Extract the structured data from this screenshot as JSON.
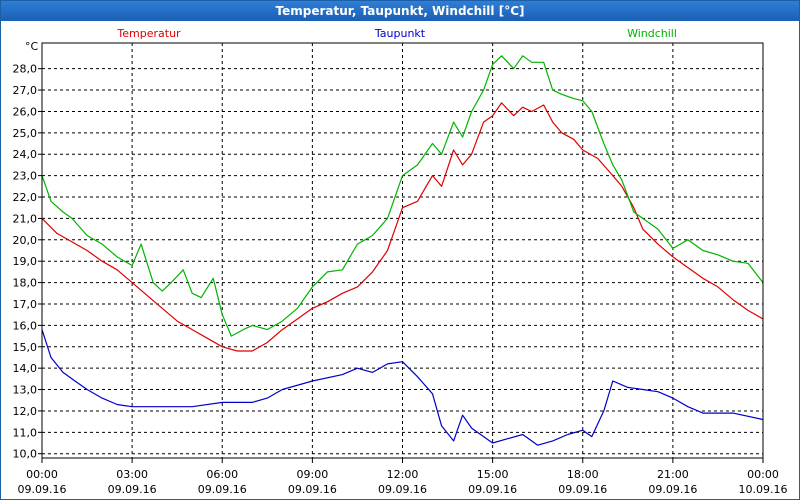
{
  "chart_data": {
    "type": "line",
    "title": "Temperatur, Taupunkt, Windchill [°C]",
    "ylabel": "°C",
    "ylim": [
      9.8,
      29.2
    ],
    "y_ticks": [
      "10,0",
      "11,0",
      "12,0",
      "13,0",
      "14,0",
      "15,0",
      "16,0",
      "17,0",
      "18,0",
      "19,0",
      "20,0",
      "21,0",
      "22,0",
      "23,0",
      "24,0",
      "25,0",
      "26,0",
      "27,0",
      "28,0"
    ],
    "x_ticks": [
      {
        "time": "00:00",
        "date": "09.09.16"
      },
      {
        "time": "03:00",
        "date": "09.09.16"
      },
      {
        "time": "06:00",
        "date": "09.09.16"
      },
      {
        "time": "09:00",
        "date": "09.09.16"
      },
      {
        "time": "12:00",
        "date": "09.09.16"
      },
      {
        "time": "15:00",
        "date": "09.09.16"
      },
      {
        "time": "18:00",
        "date": "09.09.16"
      },
      {
        "time": "21:00",
        "date": "09.09.16"
      },
      {
        "time": "00:00",
        "date": "10.09.16"
      }
    ],
    "x_unit": "hours since 09.09.16 00:00",
    "xlim": [
      0,
      24
    ],
    "series": [
      {
        "name": "Temperatur",
        "color": "#e00000",
        "points": [
          [
            0,
            21.0
          ],
          [
            0.5,
            20.3
          ],
          [
            1,
            19.9
          ],
          [
            1.5,
            19.5
          ],
          [
            2,
            19.0
          ],
          [
            2.5,
            18.6
          ],
          [
            3,
            18.0
          ],
          [
            3.5,
            17.4
          ],
          [
            4,
            16.8
          ],
          [
            4.5,
            16.2
          ],
          [
            5,
            15.8
          ],
          [
            5.5,
            15.4
          ],
          [
            6,
            15.0
          ],
          [
            6.5,
            14.8
          ],
          [
            7,
            14.8
          ],
          [
            7.5,
            15.2
          ],
          [
            8,
            15.8
          ],
          [
            8.5,
            16.3
          ],
          [
            9,
            16.8
          ],
          [
            9.5,
            17.1
          ],
          [
            10,
            17.5
          ],
          [
            10.5,
            17.8
          ],
          [
            11,
            18.5
          ],
          [
            11.5,
            19.5
          ],
          [
            12,
            21.5
          ],
          [
            12.5,
            21.8
          ],
          [
            13,
            23.0
          ],
          [
            13.3,
            22.5
          ],
          [
            13.7,
            24.2
          ],
          [
            14,
            23.5
          ],
          [
            14.3,
            24.0
          ],
          [
            14.7,
            25.5
          ],
          [
            15,
            25.8
          ],
          [
            15.3,
            26.4
          ],
          [
            15.7,
            25.8
          ],
          [
            16,
            26.2
          ],
          [
            16.3,
            26.0
          ],
          [
            16.7,
            26.3
          ],
          [
            17,
            25.5
          ],
          [
            17.3,
            25.0
          ],
          [
            17.7,
            24.7
          ],
          [
            18,
            24.2
          ],
          [
            18.5,
            23.8
          ],
          [
            19,
            23.0
          ],
          [
            19.3,
            22.5
          ],
          [
            19.7,
            21.5
          ],
          [
            20,
            20.5
          ],
          [
            20.5,
            19.8
          ],
          [
            21,
            19.2
          ],
          [
            21.5,
            18.7
          ],
          [
            22,
            18.2
          ],
          [
            22.5,
            17.8
          ],
          [
            23,
            17.2
          ],
          [
            23.5,
            16.7
          ],
          [
            24,
            16.3
          ]
        ]
      },
      {
        "name": "Taupunkt",
        "color": "#0000cc",
        "points": [
          [
            0,
            15.8
          ],
          [
            0.3,
            14.5
          ],
          [
            0.7,
            13.8
          ],
          [
            1,
            13.5
          ],
          [
            1.5,
            13.0
          ],
          [
            2,
            12.6
          ],
          [
            2.5,
            12.3
          ],
          [
            3,
            12.2
          ],
          [
            4,
            12.2
          ],
          [
            5,
            12.2
          ],
          [
            6,
            12.4
          ],
          [
            7,
            12.4
          ],
          [
            7.5,
            12.6
          ],
          [
            8,
            13.0
          ],
          [
            9,
            13.4
          ],
          [
            10,
            13.7
          ],
          [
            10.5,
            14.0
          ],
          [
            11,
            13.8
          ],
          [
            11.5,
            14.2
          ],
          [
            12,
            14.3
          ],
          [
            12.5,
            13.6
          ],
          [
            13,
            12.8
          ],
          [
            13.3,
            11.3
          ],
          [
            13.7,
            10.6
          ],
          [
            14,
            11.8
          ],
          [
            14.3,
            11.2
          ],
          [
            14.7,
            10.8
          ],
          [
            15,
            10.5
          ],
          [
            15.5,
            10.7
          ],
          [
            16,
            10.9
          ],
          [
            16.5,
            10.4
          ],
          [
            17,
            10.6
          ],
          [
            17.5,
            10.9
          ],
          [
            18,
            11.1
          ],
          [
            18.3,
            10.8
          ],
          [
            18.7,
            12.0
          ],
          [
            19,
            13.4
          ],
          [
            19.5,
            13.1
          ],
          [
            20,
            13.0
          ],
          [
            20.5,
            12.9
          ],
          [
            21,
            12.6
          ],
          [
            21.5,
            12.2
          ],
          [
            22,
            11.9
          ],
          [
            23,
            11.9
          ],
          [
            24,
            11.6
          ]
        ]
      },
      {
        "name": "Windchill",
        "color": "#00b400",
        "points": [
          [
            0,
            23.0
          ],
          [
            0.3,
            21.8
          ],
          [
            0.7,
            21.3
          ],
          [
            1,
            21.0
          ],
          [
            1.5,
            20.2
          ],
          [
            2,
            19.8
          ],
          [
            2.5,
            19.2
          ],
          [
            3,
            18.8
          ],
          [
            3.3,
            19.8
          ],
          [
            3.7,
            18.0
          ],
          [
            4,
            17.6
          ],
          [
            4.3,
            18.0
          ],
          [
            4.7,
            18.6
          ],
          [
            5,
            17.5
          ],
          [
            5.3,
            17.3
          ],
          [
            5.7,
            18.2
          ],
          [
            6,
            16.5
          ],
          [
            6.3,
            15.5
          ],
          [
            6.7,
            15.8
          ],
          [
            7,
            16.0
          ],
          [
            7.5,
            15.8
          ],
          [
            8,
            16.2
          ],
          [
            8.5,
            16.8
          ],
          [
            9,
            17.8
          ],
          [
            9.5,
            18.5
          ],
          [
            10,
            18.6
          ],
          [
            10.5,
            19.8
          ],
          [
            11,
            20.2
          ],
          [
            11.5,
            21.0
          ],
          [
            12,
            23.0
          ],
          [
            12.5,
            23.5
          ],
          [
            13,
            24.5
          ],
          [
            13.3,
            24.0
          ],
          [
            13.7,
            25.5
          ],
          [
            14,
            24.8
          ],
          [
            14.3,
            26.0
          ],
          [
            14.7,
            27.0
          ],
          [
            15,
            28.2
          ],
          [
            15.3,
            28.6
          ],
          [
            15.7,
            28.0
          ],
          [
            16,
            28.6
          ],
          [
            16.3,
            28.3
          ],
          [
            16.7,
            28.3
          ],
          [
            17,
            27.0
          ],
          [
            17.3,
            26.8
          ],
          [
            17.7,
            26.6
          ],
          [
            18,
            26.5
          ],
          [
            18.3,
            26.0
          ],
          [
            18.7,
            24.5
          ],
          [
            19,
            23.5
          ],
          [
            19.3,
            22.8
          ],
          [
            19.7,
            21.3
          ],
          [
            20,
            21.0
          ],
          [
            20.5,
            20.5
          ],
          [
            21,
            19.6
          ],
          [
            21.5,
            20.0
          ],
          [
            22,
            19.5
          ],
          [
            22.5,
            19.3
          ],
          [
            23,
            19.0
          ],
          [
            23.5,
            18.9
          ],
          [
            24,
            18.0
          ]
        ]
      }
    ]
  }
}
